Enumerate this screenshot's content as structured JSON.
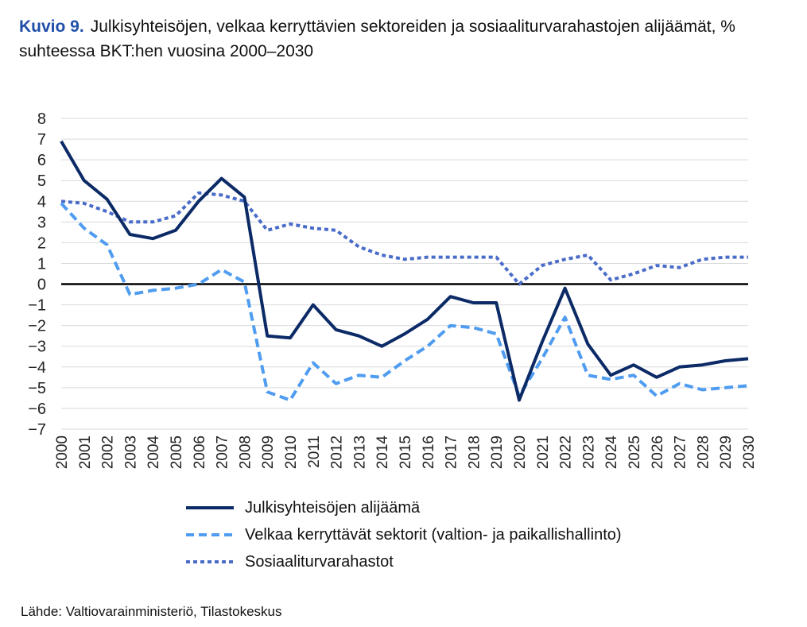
{
  "figure": {
    "label": "Kuvio 9.",
    "title": "Julkisyhteisöjen, velkaa kerryttävien sektoreiden ja sosiaaliturvarahastojen alijäämät, % suhteessa BKT:hen vuosina 2000–2030",
    "source": "Lähde: Valtiovarainministeriö, Tilastokeskus"
  },
  "colors": {
    "navy": "#0b2a66",
    "light_blue": "#4f9cf0",
    "medium_blue": "#4a6cc9"
  },
  "chart_data": {
    "type": "line",
    "x": [
      "2000",
      "2001",
      "2002",
      "2003",
      "2004",
      "2005",
      "2006",
      "2007",
      "2008",
      "2009",
      "2010",
      "2011",
      "2012",
      "2013",
      "2014",
      "2015",
      "2016",
      "2017",
      "2018",
      "2019",
      "2020",
      "2021",
      "2022",
      "2023",
      "2024",
      "2025",
      "2026",
      "2027",
      "2028",
      "2029",
      "2030"
    ],
    "ylim": [
      -7,
      8
    ],
    "yticks": [
      -7,
      -6,
      -5,
      -4,
      -3,
      -2,
      -1,
      0,
      1,
      2,
      3,
      4,
      5,
      6,
      7,
      8
    ],
    "grid": true,
    "legend_position": "bottom",
    "series": [
      {
        "name": "Julkisyhteisöjen alijäämä",
        "style": "solid",
        "color": "#0b2a66",
        "values": [
          6.9,
          5.0,
          4.1,
          2.4,
          2.2,
          2.6,
          4.0,
          5.1,
          4.2,
          -2.5,
          -2.6,
          -1.0,
          -2.2,
          -2.5,
          -3.0,
          -2.4,
          -1.7,
          -0.6,
          -0.9,
          -0.9,
          -5.6,
          -2.8,
          -0.2,
          -2.9,
          -4.4,
          -3.9,
          -4.5,
          -4.0,
          -3.9,
          -3.7,
          -3.6
        ]
      },
      {
        "name": "Velkaa kerryttävät sektorit (valtion- ja paikallishallinto)",
        "style": "dashed",
        "color": "#4f9cf0",
        "values": [
          3.9,
          2.7,
          1.9,
          -0.5,
          -0.3,
          -0.2,
          0.0,
          0.7,
          0.1,
          -5.2,
          -5.6,
          -3.8,
          -4.8,
          -4.4,
          -4.5,
          -3.7,
          -3.0,
          -2.0,
          -2.1,
          -2.4,
          -5.4,
          -3.6,
          -1.6,
          -4.4,
          -4.6,
          -4.4,
          -5.4,
          -4.8,
          -5.1,
          -5.0,
          -4.9
        ]
      },
      {
        "name": "Sosiaaliturvarahastot",
        "style": "dotted",
        "color": "#4a6cc9",
        "values": [
          4.0,
          3.9,
          3.5,
          3.0,
          3.0,
          3.3,
          4.4,
          4.3,
          4.0,
          2.6,
          2.9,
          2.7,
          2.6,
          1.8,
          1.4,
          1.2,
          1.3,
          1.3,
          1.3,
          1.3,
          0.0,
          0.9,
          1.2,
          1.4,
          0.2,
          0.5,
          0.9,
          0.8,
          1.2,
          1.3,
          1.3
        ]
      }
    ]
  }
}
